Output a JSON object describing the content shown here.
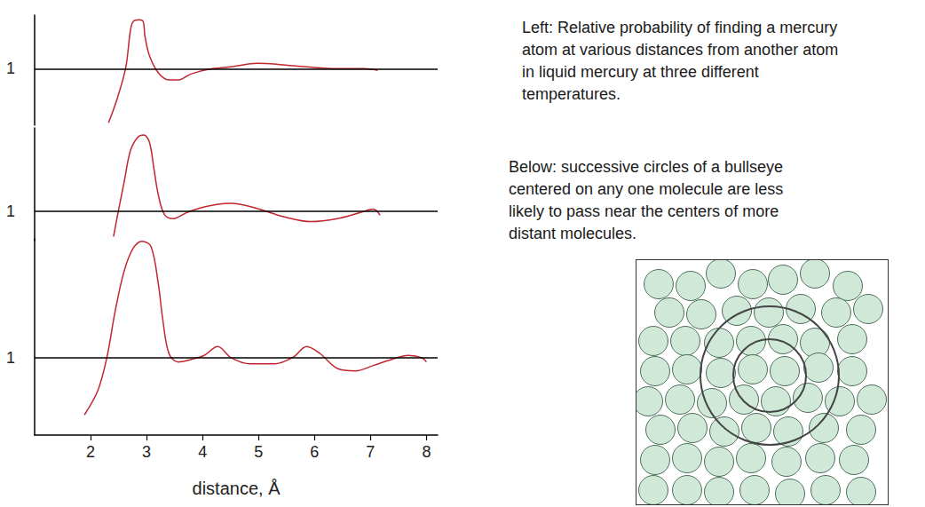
{
  "chart_data": [
    {
      "type": "line",
      "x": [
        2.32,
        2.48,
        2.63,
        2.71,
        2.76,
        2.87,
        2.94,
        2.97,
        3.05,
        3.21,
        3.4,
        3.56,
        3.79,
        4.11,
        4.51,
        4.98,
        5.38,
        5.86,
        6.41,
        6.89,
        7.13
      ],
      "values": [
        0.09,
        0.51,
        1.03,
        1.63,
        1.79,
        1.82,
        1.79,
        1.55,
        1.22,
        0.93,
        0.81,
        0.81,
        0.91,
        0.99,
        1.03,
        1.09,
        1.07,
        1.03,
        1.0,
        1.0,
        0.97
      ],
      "color": "#c1272d",
      "xlim": [
        1,
        8.2
      ],
      "ylim": [
        0.05,
        1.9
      ],
      "yticks": [
        1
      ],
      "tick_labels": "y"
    },
    {
      "type": "line",
      "x": [
        2.41,
        2.49,
        2.6,
        2.71,
        2.84,
        2.95,
        3.05,
        3.13,
        3.21,
        3.32,
        3.48,
        3.71,
        4.03,
        4.51,
        4.98,
        5.46,
        5.94,
        6.41,
        6.81,
        7.05,
        7.17
      ],
      "values": [
        0.57,
        0.97,
        1.49,
        2.01,
        2.24,
        2.28,
        2.16,
        1.72,
        1.27,
        0.94,
        0.87,
        0.97,
        1.07,
        1.13,
        1.04,
        0.9,
        0.82,
        0.87,
        0.97,
        1.03,
        0.93
      ],
      "color": "#c1272d",
      "xlim": [
        1,
        8.2
      ],
      "ylim": [
        0.5,
        2.4
      ],
      "yticks": [
        1
      ],
      "tick_labels": "y"
    },
    {
      "type": "line",
      "x": [
        1.89,
        2.13,
        2.29,
        2.44,
        2.6,
        2.76,
        2.92,
        3.08,
        3.21,
        3.29,
        3.4,
        3.56,
        3.79,
        4.03,
        4.27,
        4.51,
        4.83,
        5.3,
        5.62,
        5.86,
        6.1,
        6.41,
        6.73,
        7.05,
        7.37,
        7.68,
        7.92,
        8.0
      ],
      "values": [
        0.04,
        0.45,
        1.0,
        1.79,
        2.46,
        2.84,
        2.96,
        2.87,
        2.24,
        1.64,
        1.07,
        0.93,
        0.97,
        1.04,
        1.19,
        1.0,
        0.9,
        0.9,
        1.01,
        1.19,
        1.07,
        0.82,
        0.78,
        0.87,
        0.97,
        1.04,
        1.0,
        0.93
      ],
      "color": "#c1272d",
      "xlim": [
        1,
        8.2
      ],
      "ylim": [
        -0.3,
        3.0
      ],
      "yticks": [
        1
      ],
      "xticks": [
        2,
        3,
        4,
        5,
        6,
        7,
        8
      ],
      "xlabel": "distance, Å"
    }
  ],
  "captions": [
    {
      "lines": [
        "Left: Relative probability of finding a mercury",
        "atom at various distances from another atom",
        "in liquid mercury at three different",
        "temperatures."
      ]
    },
    {
      "lines": [
        "Below: successive circles of a bullseye",
        "centered on any one molecule are less",
        "likely to pass near the centers of more",
        "distant molecules."
      ]
    }
  ]
}
